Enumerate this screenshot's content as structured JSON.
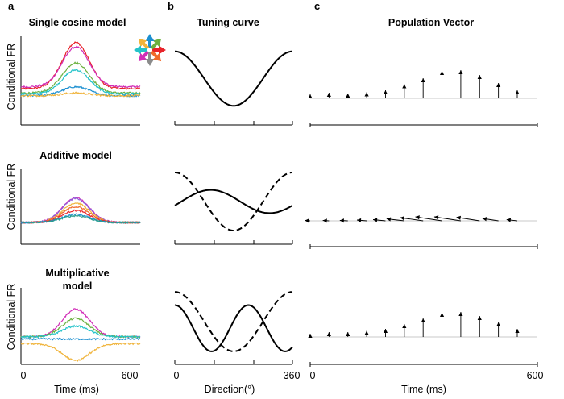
{
  "figure": {
    "panel_letters": [
      "a",
      "b",
      "c"
    ],
    "column_a": {
      "y_label": "Conditional FR",
      "x_label": "Time (ms)",
      "x_ticks": [
        "0",
        "600"
      ],
      "row_titles": [
        "Single cosine model",
        "Additive model",
        "Multiplicative",
        "model"
      ]
    },
    "column_b": {
      "title": "Tuning curve",
      "x_label": "Direction(°)",
      "x_ticks": [
        "0",
        "360"
      ]
    },
    "column_c": {
      "title": "Population Vector",
      "x_label": "Time (ms)",
      "x_ticks": [
        "0",
        "600"
      ]
    },
    "direction_legend_colors": [
      "#e8232a",
      "#6bb13f",
      "#1b8fd0",
      "#f0b43c",
      "#24c3c9",
      "#d12db7",
      "#8b8b8b",
      "#f06a2a"
    ]
  },
  "chart_data": [
    {
      "type": "line",
      "panel": "a",
      "title": "Single cosine model",
      "xlabel": "Time (ms)",
      "ylabel": "Conditional FR",
      "xlim": [
        0,
        600
      ],
      "ylim": [
        0,
        1
      ],
      "series": [
        {
          "name": "red",
          "color": "#e8232a",
          "baseline": 0.41,
          "peak": 0.93
        },
        {
          "name": "magenta",
          "color": "#d12db7",
          "baseline": 0.43,
          "peak": 0.88
        },
        {
          "name": "green",
          "color": "#6bb13f",
          "baseline": 0.36,
          "peak": 0.7
        },
        {
          "name": "cyan",
          "color": "#24c3c9",
          "baseline": 0.35,
          "peak": 0.62
        },
        {
          "name": "blue",
          "color": "#1b8fd0",
          "baseline": 0.33,
          "peak": 0.43
        },
        {
          "name": "yellow",
          "color": "#f0b43c",
          "baseline": 0.33,
          "peak": 0.36
        }
      ]
    },
    {
      "type": "line",
      "panel": "a",
      "title": "Additive model",
      "xlabel": "Time (ms)",
      "ylabel": "Conditional FR",
      "xlim": [
        0,
        600
      ],
      "ylim": [
        0,
        1
      ],
      "series": [
        {
          "name": "magenta",
          "color": "#d12db7",
          "baseline": 0.29,
          "peak": 0.62
        },
        {
          "name": "purple",
          "color": "#8e5cd9",
          "baseline": 0.29,
          "peak": 0.61
        },
        {
          "name": "yellow",
          "color": "#f0b43c",
          "baseline": 0.29,
          "peak": 0.55
        },
        {
          "name": "orange",
          "color": "#f06a2a",
          "baseline": 0.29,
          "peak": 0.5
        },
        {
          "name": "red",
          "color": "#e8232a",
          "baseline": 0.29,
          "peak": 0.45
        },
        {
          "name": "blue",
          "color": "#1b8fd0",
          "baseline": 0.29,
          "peak": 0.4
        },
        {
          "name": "green",
          "color": "#2a9d8f",
          "baseline": 0.29,
          "peak": 0.38
        }
      ]
    },
    {
      "type": "line",
      "panel": "a",
      "title": "Multiplicative model",
      "xlabel": "Time (ms)",
      "ylabel": "Conditional FR",
      "xlim": [
        0,
        600
      ],
      "ylim": [
        0,
        1
      ],
      "series": [
        {
          "name": "magenta",
          "color": "#d12db7",
          "baseline": 0.36,
          "peak": 0.72
        },
        {
          "name": "green",
          "color": "#6bb13f",
          "baseline": 0.36,
          "peak": 0.6
        },
        {
          "name": "cyan",
          "color": "#24c3c9",
          "baseline": 0.36,
          "peak": 0.5
        },
        {
          "name": "blue",
          "color": "#1b8fd0",
          "baseline": 0.33,
          "peak": 0.33
        },
        {
          "name": "yellow",
          "color": "#f0b43c",
          "baseline": 0.27,
          "peak": 0.05
        }
      ]
    },
    {
      "type": "line",
      "panel": "b",
      "title": "Tuning curve",
      "xlabel": "Direction(°)",
      "xlim": [
        0,
        360
      ],
      "rows": [
        {
          "series": [
            {
              "name": "solid",
              "style": "solid",
              "mean": 0.5,
              "amplitude": 0.45,
              "phase_deg": 0,
              "freq": 1
            }
          ]
        },
        {
          "series": [
            {
              "name": "dashed",
              "style": "dashed",
              "mean": 0.5,
              "amplitude": 0.45,
              "phase_deg": 0,
              "freq": 1
            },
            {
              "name": "solid",
              "style": "solid",
              "mean": 0.5,
              "amplitude": 0.18,
              "phase_deg": 110,
              "freq": 1
            }
          ]
        },
        {
          "series": [
            {
              "name": "dashed",
              "style": "dashed",
              "mean": 0.5,
              "amplitude": 0.45,
              "phase_deg": 0,
              "freq": 1
            },
            {
              "name": "solid",
              "style": "solid",
              "mean": 0.4,
              "amplitude": 0.35,
              "phase_deg": 0,
              "freq": 1.6
            }
          ]
        }
      ]
    },
    {
      "type": "scatter",
      "panel": "c",
      "title": "Population Vector",
      "xlabel": "Time (ms)",
      "xlim": [
        0,
        600
      ],
      "description_series": "arrow vectors at 12 time points",
      "rows": [
        {
          "dx": [
            0,
            0,
            0,
            0,
            0,
            0,
            0,
            0,
            0,
            0,
            0,
            0
          ],
          "dy": [
            0.1,
            0.14,
            0.12,
            0.15,
            0.2,
            0.35,
            0.5,
            0.68,
            0.7,
            0.58,
            0.38,
            0.2
          ]
        },
        {
          "dx": [
            -0.06,
            -0.07,
            -0.09,
            -0.11,
            -0.14,
            -0.2,
            -0.26,
            -0.3,
            -0.3,
            -0.26,
            -0.18,
            -0.12
          ],
          "dy": [
            0.01,
            0.01,
            0.01,
            0.02,
            0.03,
            0.05,
            0.08,
            0.1,
            0.1,
            0.09,
            0.06,
            0.03
          ]
        },
        {
          "dx": [
            0,
            0,
            0,
            0,
            0,
            0,
            0,
            0,
            0,
            0,
            0,
            0
          ],
          "dy": [
            0.08,
            0.12,
            0.12,
            0.15,
            0.2,
            0.32,
            0.46,
            0.6,
            0.62,
            0.52,
            0.36,
            0.2
          ]
        }
      ]
    }
  ]
}
